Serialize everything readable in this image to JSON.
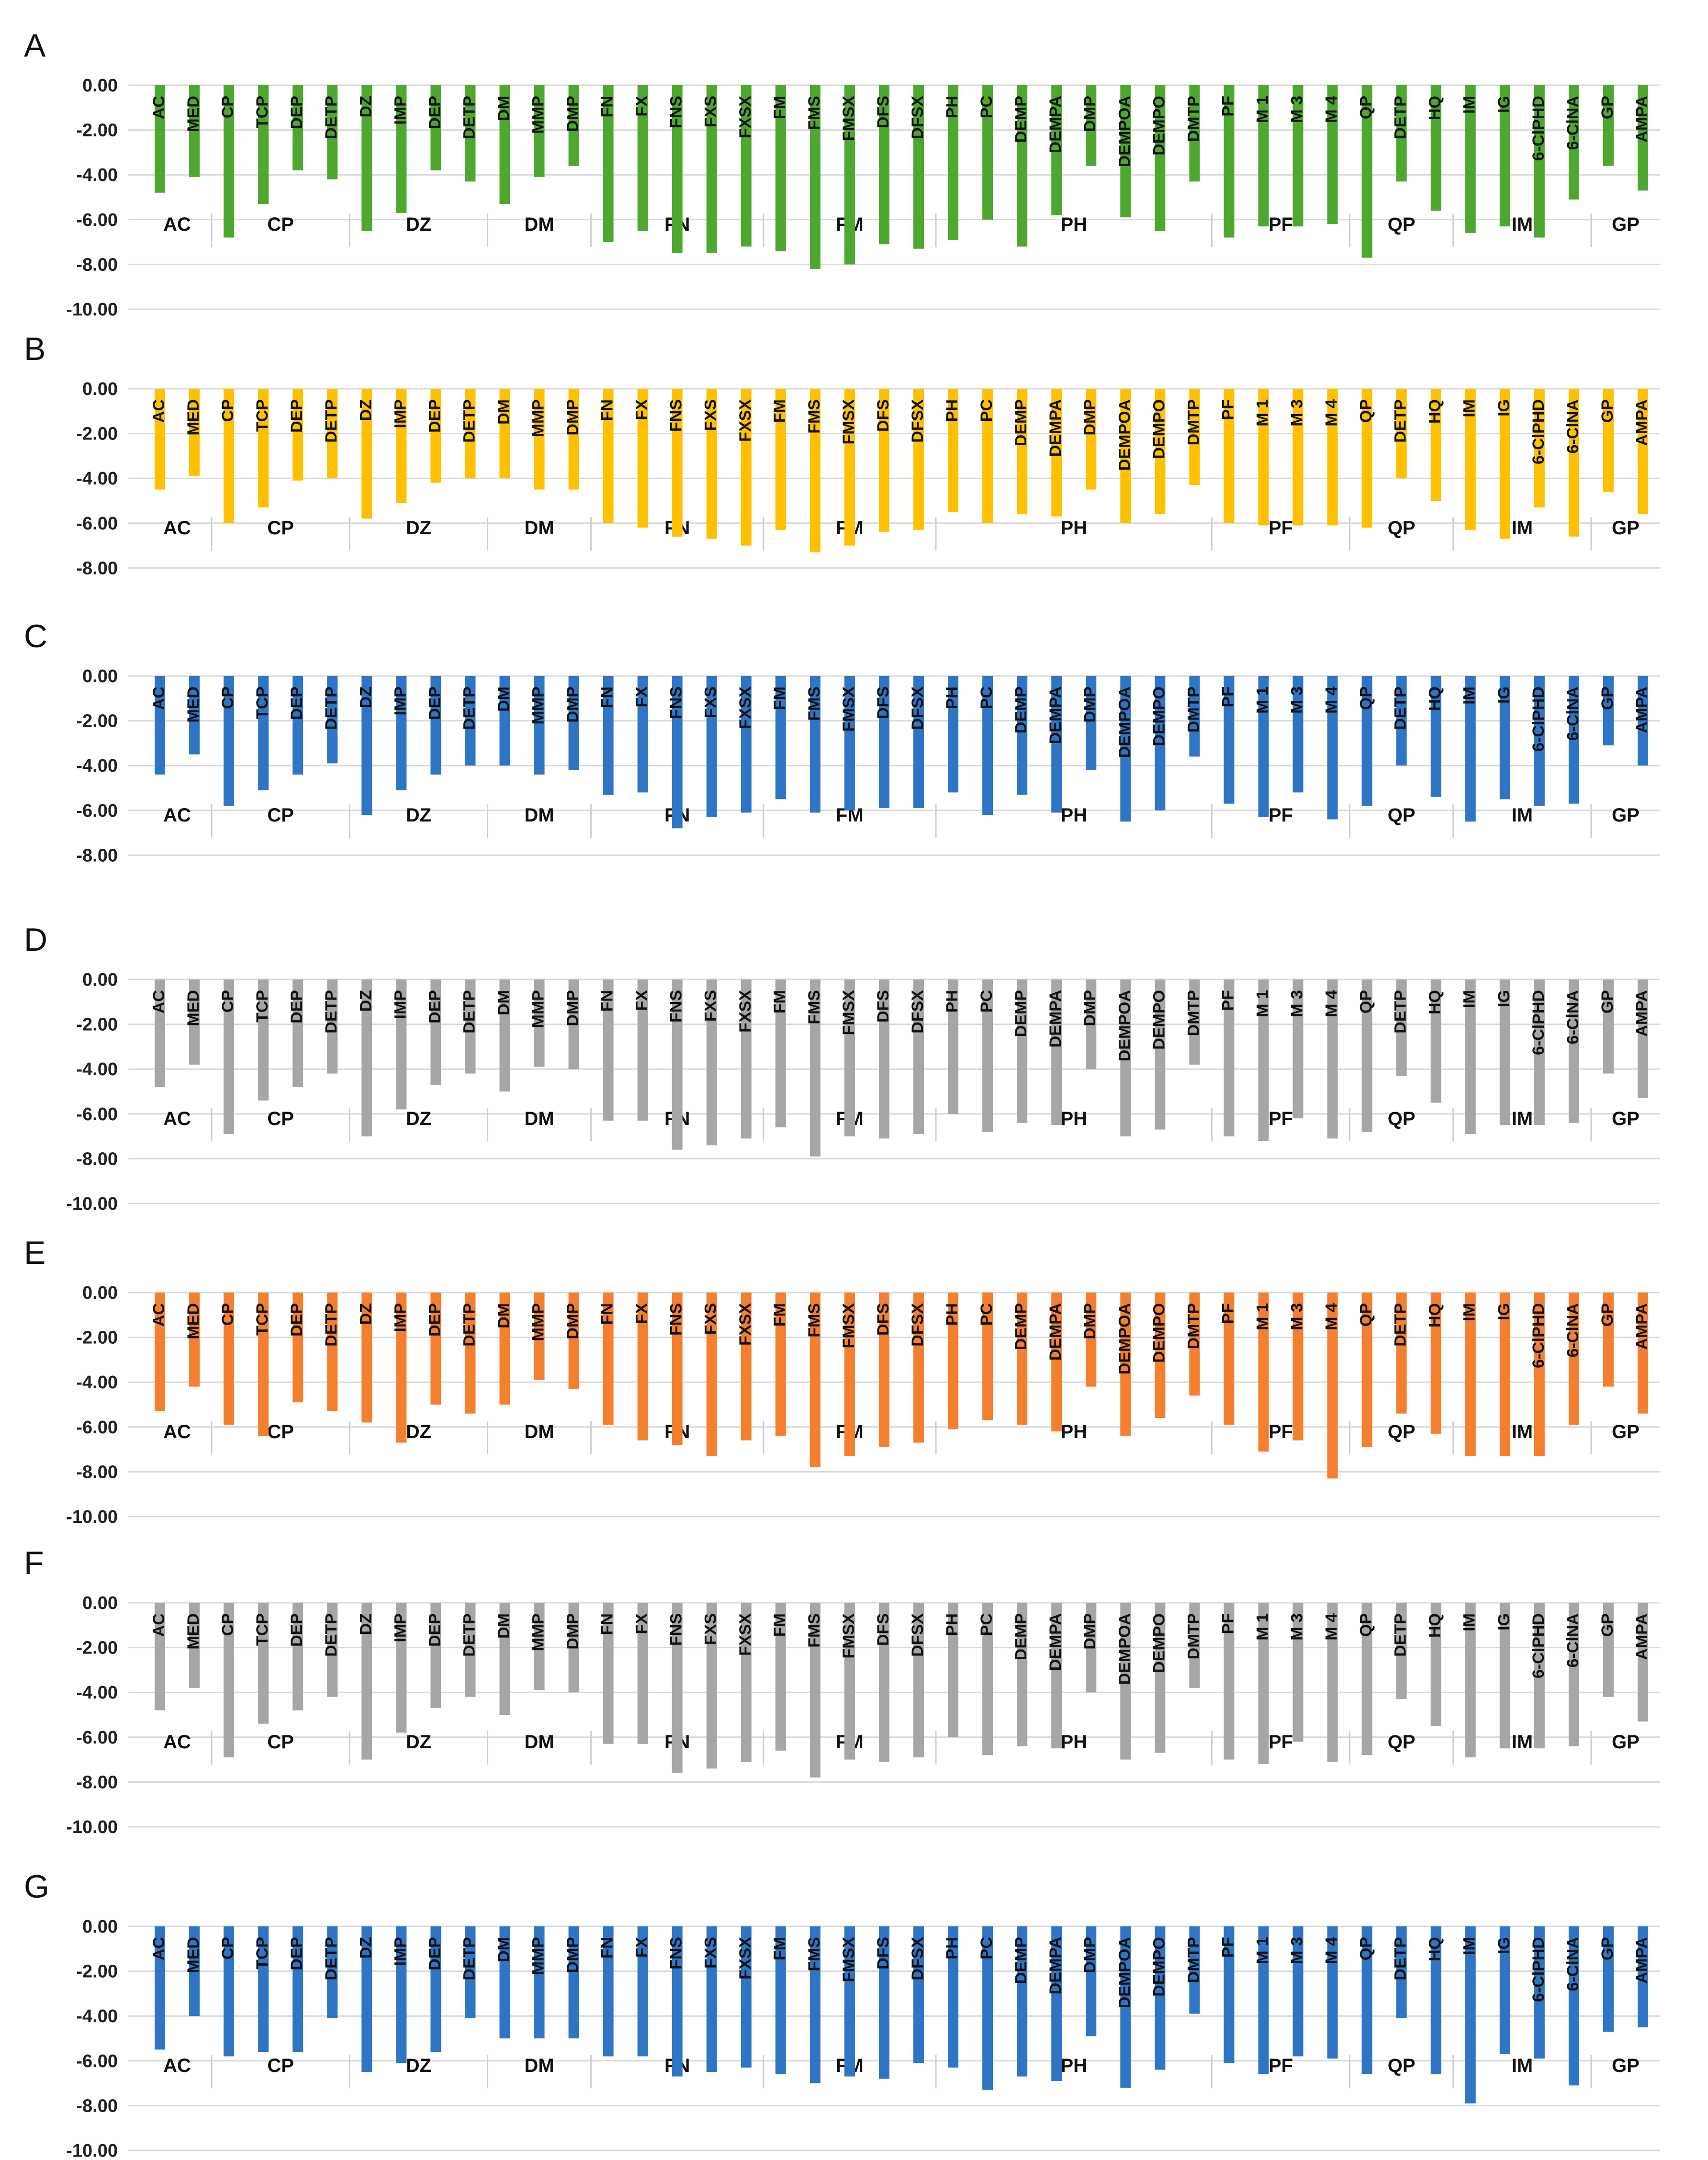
{
  "chart_data": {
    "type": "bar",
    "categories": [
      "AC",
      "MED",
      "CP",
      "TCP",
      "DEP",
      "DETP",
      "DZ",
      "IMP",
      "DEP",
      "DETP",
      "DM",
      "MMP",
      "DMP",
      "FN",
      "FX",
      "FNS",
      "FXS",
      "FXSX",
      "FM",
      "FMS",
      "FMSX",
      "DFS",
      "DFSX",
      "PH",
      "PC",
      "DEMP",
      "DEMPA",
      "DMP",
      "DEMPOA",
      "DEMPO",
      "DMTP",
      "PF",
      "M 1",
      "M 3",
      "M 4",
      "QP",
      "DETP",
      "HQ",
      "IM",
      "IG",
      "6-ClPHD",
      "6-ClNA",
      "GP",
      "AMPA"
    ],
    "groups": [
      {
        "label": "AC",
        "count": 2
      },
      {
        "label": "CP",
        "count": 4
      },
      {
        "label": "DZ",
        "count": 4
      },
      {
        "label": "DM",
        "count": 3
      },
      {
        "label": "FN",
        "count": 5
      },
      {
        "label": "FM",
        "count": 5
      },
      {
        "label": "PH",
        "count": 8
      },
      {
        "label": "PF",
        "count": 4
      },
      {
        "label": "QP",
        "count": 3
      },
      {
        "label": "IM",
        "count": 4
      },
      {
        "label": "GP",
        "count": 2
      }
    ],
    "panels": [
      {
        "label": "A",
        "color": "#4ea72e",
        "ylim": [
          -10,
          0
        ],
        "yticks": [
          "0.00",
          "-2.00",
          "-4.00",
          "-6.00",
          "-8.00",
          "-10.00"
        ],
        "values": [
          -4.8,
          -4.1,
          -6.8,
          -5.3,
          -3.8,
          -4.2,
          -6.5,
          -5.7,
          -3.8,
          -4.3,
          -5.3,
          -4.1,
          -3.6,
          -7.0,
          -6.5,
          -7.5,
          -7.5,
          -7.2,
          -7.4,
          -8.2,
          -8.0,
          -7.1,
          -7.3,
          -6.9,
          -6.0,
          -7.2,
          -5.8,
          -3.6,
          -5.9,
          -6.5,
          -4.3,
          -6.8,
          -6.3,
          -6.3,
          -6.2,
          -7.7,
          -4.3,
          -5.6,
          -6.6,
          -6.3,
          -6.8,
          -5.1,
          -3.6,
          -4.7
        ]
      },
      {
        "label": "B",
        "color": "#ffc000",
        "ylim": [
          -8,
          0
        ],
        "yticks": [
          "0.00",
          "-2.00",
          "-4.00",
          "-6.00",
          "-8.00"
        ],
        "values": [
          -4.5,
          -3.9,
          -6.0,
          -5.3,
          -4.1,
          -4.0,
          -5.8,
          -5.1,
          -4.2,
          -4.0,
          -4.0,
          -4.5,
          -4.5,
          -6.0,
          -6.2,
          -6.6,
          -6.7,
          -7.0,
          -6.3,
          -7.3,
          -7.0,
          -6.4,
          -6.3,
          -5.5,
          -6.0,
          -5.6,
          -5.7,
          -4.5,
          -6.0,
          -5.6,
          -4.3,
          -6.0,
          -6.1,
          -6.1,
          -6.1,
          -6.2,
          -4.0,
          -5.0,
          -6.3,
          -6.7,
          -5.3,
          -6.6,
          -4.6,
          -5.6
        ]
      },
      {
        "label": "C",
        "color": "#2e75c5",
        "ylim": [
          -8,
          0
        ],
        "yticks": [
          "0.00",
          "-2.00",
          "-4.00",
          "-6.00",
          "-8.00"
        ],
        "values": [
          -4.4,
          -3.5,
          -5.8,
          -5.1,
          -4.4,
          -3.9,
          -6.2,
          -5.1,
          -4.4,
          -4.0,
          -4.0,
          -4.4,
          -4.2,
          -5.3,
          -5.2,
          -6.8,
          -6.3,
          -6.1,
          -5.5,
          -6.1,
          -6.0,
          -5.9,
          -5.9,
          -5.2,
          -6.2,
          -5.3,
          -6.1,
          -4.2,
          -6.5,
          -6.0,
          -3.6,
          -5.7,
          -6.3,
          -5.2,
          -6.4,
          -5.8,
          -4.0,
          -5.4,
          -6.5,
          -5.5,
          -5.8,
          -5.7,
          -3.1,
          -4.0
        ]
      },
      {
        "label": "D",
        "color": "#a6a6a6",
        "ylim": [
          -10,
          0
        ],
        "yticks": [
          "0.00",
          "-2.00",
          "-4.00",
          "-6.00",
          "-8.00",
          "-10.00"
        ],
        "values": [
          -4.8,
          -3.8,
          -6.9,
          -5.4,
          -4.8,
          -4.2,
          -7.0,
          -5.8,
          -4.7,
          -4.2,
          -5.0,
          -3.9,
          -4.0,
          -6.3,
          -6.3,
          -7.6,
          -7.4,
          -7.1,
          -6.6,
          -7.9,
          -7.0,
          -7.1,
          -6.9,
          -6.0,
          -6.8,
          -6.4,
          -6.5,
          -4.0,
          -7.0,
          -6.7,
          -3.8,
          -7.0,
          -7.2,
          -6.2,
          -7.1,
          -6.8,
          -4.3,
          -5.5,
          -6.9,
          -6.5,
          -6.5,
          -6.4,
          -4.2,
          -5.3
        ]
      },
      {
        "label": "E",
        "color": "#f47f2f",
        "ylim": [
          -10,
          0
        ],
        "yticks": [
          "0.00",
          "-2.00",
          "-4.00",
          "-6.00",
          "-8.00",
          "-10.00"
        ],
        "values": [
          -5.3,
          -4.2,
          -5.9,
          -6.4,
          -4.9,
          -5.3,
          -5.8,
          -6.7,
          -5.0,
          -5.4,
          -5.0,
          -3.9,
          -4.3,
          -5.9,
          -6.6,
          -6.8,
          -7.3,
          -6.6,
          -6.4,
          -7.8,
          -7.3,
          -6.9,
          -6.7,
          -6.1,
          -5.7,
          -5.9,
          -6.2,
          -4.2,
          -6.4,
          -5.6,
          -4.6,
          -5.9,
          -7.1,
          -6.6,
          -8.3,
          -6.9,
          -5.4,
          -6.3,
          -7.3,
          -7.3,
          -7.3,
          -5.9,
          -4.2,
          -5.4
        ]
      },
      {
        "label": "F",
        "color": "#a6a6a6",
        "ylim": [
          -10,
          0
        ],
        "yticks": [
          "0.00",
          "-2.00",
          "-4.00",
          "-6.00",
          "-8.00",
          "-10.00"
        ],
        "values": [
          -4.8,
          -3.8,
          -6.9,
          -5.4,
          -4.8,
          -4.2,
          -7.0,
          -5.8,
          -4.7,
          -4.2,
          -5.0,
          -3.9,
          -4.0,
          -6.3,
          -6.3,
          -7.6,
          -7.4,
          -7.1,
          -6.6,
          -7.8,
          -7.0,
          -7.1,
          -6.9,
          -6.0,
          -6.8,
          -6.4,
          -6.5,
          -4.0,
          -7.0,
          -6.7,
          -3.8,
          -7.0,
          -7.2,
          -6.2,
          -7.1,
          -6.8,
          -4.3,
          -5.5,
          -6.9,
          -6.5,
          -6.5,
          -6.4,
          -4.2,
          -5.3
        ]
      },
      {
        "label": "G",
        "color": "#2e75c5",
        "ylim": [
          -10,
          0
        ],
        "yticks": [
          "0.00",
          "-2.00",
          "-4.00",
          "-6.00",
          "-8.00",
          "-10.00"
        ],
        "values": [
          -5.5,
          -4.0,
          -5.8,
          -5.6,
          -5.6,
          -4.1,
          -6.5,
          -6.1,
          -5.6,
          -4.1,
          -5.0,
          -5.0,
          -5.0,
          -5.8,
          -5.8,
          -6.7,
          -6.5,
          -6.3,
          -6.6,
          -7.0,
          -6.7,
          -6.8,
          -6.1,
          -6.3,
          -7.3,
          -6.7,
          -6.9,
          -4.9,
          -7.2,
          -6.4,
          -3.9,
          -6.1,
          -6.6,
          -5.8,
          -5.9,
          -6.6,
          -4.1,
          -6.6,
          -7.9,
          -5.7,
          -5.9,
          -7.1,
          -4.7,
          -4.5
        ]
      }
    ]
  }
}
